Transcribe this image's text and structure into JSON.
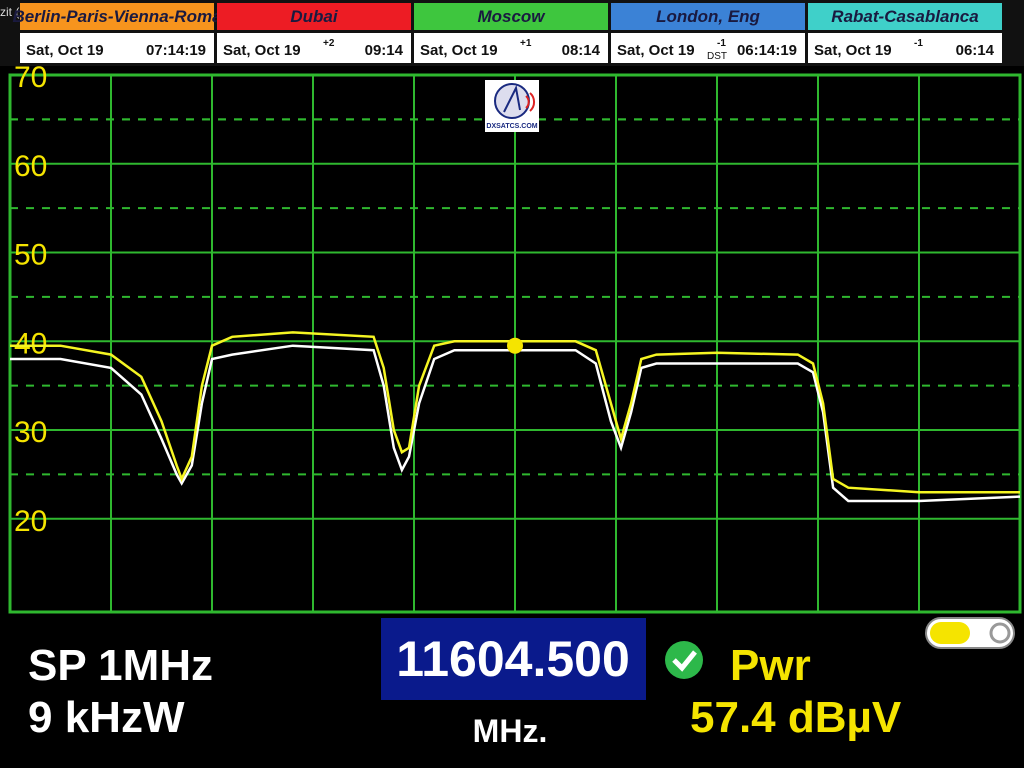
{
  "corner_text": "zit (",
  "clocks": [
    {
      "city": "Berlin-Paris-Vienna-Roma",
      "color": "#f7941d",
      "date": "Sat, Oct 19",
      "time": "07:14:19"
    },
    {
      "city": "Dubai",
      "color": "#ed1c24",
      "date": "Sat, Oct 19",
      "offset": "+2",
      "time": "09:14"
    },
    {
      "city": "Moscow",
      "color": "#3ec63e",
      "date": "Sat, Oct 19",
      "offset": "+1",
      "time": "08:14"
    },
    {
      "city": "London, Eng",
      "color": "#3b82d6",
      "date": "Sat, Oct 19",
      "offset": "-1",
      "dst": "DST",
      "time": "06:14:19"
    },
    {
      "city": "Rabat-Casablanca",
      "color": "#3fd0c9",
      "date": "Sat, Oct 19",
      "offset": "-1",
      "time": "06:14"
    }
  ],
  "logo": "DXSATCS.COM",
  "spectrum": {
    "type": "line",
    "xlim": [
      0,
      100
    ],
    "ylim": [
      9.5,
      70
    ],
    "yticks": [
      20,
      30,
      40,
      50,
      60,
      70
    ],
    "grid": true,
    "x": [
      0,
      5,
      10,
      13,
      15,
      16.5,
      17,
      18,
      19,
      20,
      22,
      28,
      36,
      37,
      38,
      38.8,
      39.5,
      40.5,
      42,
      44,
      50,
      56,
      58,
      59.5,
      60.5,
      61.5,
      62.5,
      64,
      70,
      78,
      79.5,
      80.5,
      81.5,
      83,
      90,
      100
    ],
    "series": [
      {
        "color": "#f5f522",
        "values": [
          39.5,
          39.5,
          38.5,
          36,
          31,
          26,
          24.5,
          27,
          35,
          39.5,
          40.5,
          41,
          40.5,
          37,
          30,
          27.5,
          28,
          35,
          39.5,
          40,
          40,
          40,
          39,
          33,
          29,
          33,
          38,
          38.5,
          38.7,
          38.5,
          37.5,
          33,
          24.5,
          23.5,
          23,
          23
        ]
      },
      {
        "color": "#ffffff",
        "values": [
          38,
          38,
          37,
          34,
          29,
          25,
          24,
          26,
          33,
          38,
          38.5,
          39.5,
          39,
          35,
          28,
          25.5,
          27,
          33,
          38,
          39,
          39,
          39,
          37.5,
          31,
          28,
          32,
          37,
          37.5,
          37.5,
          37.5,
          36.5,
          32,
          23.5,
          22,
          22,
          22.5
        ]
      }
    ],
    "marker": {
      "x": 50,
      "y": 39.5,
      "color": "#f5e400"
    }
  },
  "status": {
    "span": "SP 1MHz",
    "rbw": "9 kHzW",
    "frequency": "11604.500",
    "unit": "MHz.",
    "measure": "Pwr",
    "level": "57.4 dBµV"
  }
}
